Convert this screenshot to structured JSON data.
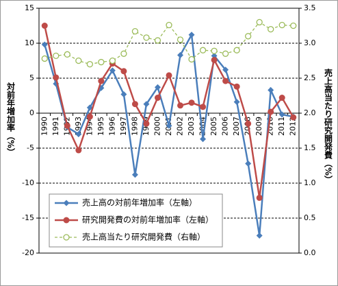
{
  "chart_data": {
    "type": "line",
    "ylabel": "対前年増加率（%）",
    "y2label": "売上高当たり研究開発費（%）",
    "categories": [
      "1990",
      "1991",
      "1992",
      "1993",
      "1994",
      "1995",
      "1996",
      "1997",
      "1998",
      "1999",
      "2000",
      "2001",
      "2002",
      "2003",
      "2004",
      "2005",
      "2006",
      "2007",
      "2008",
      "2009",
      "2010",
      "2011",
      "2012"
    ],
    "series": [
      {
        "name": "売上高の対前年増加率（左軸）",
        "color": "#4a7ebb",
        "marker": "diamond",
        "linestyle": "solid",
        "values": [
          9.8,
          4.2,
          -2.0,
          -3.0,
          0.8,
          3.6,
          6.1,
          2.7,
          -8.8,
          1.3,
          3.7,
          -1.8,
          8.3,
          11.2,
          -3.7,
          8.2,
          6.2,
          1.6,
          -7.2,
          -17.5,
          3.3,
          -0.2,
          -0.5
        ]
      },
      {
        "name": "研究開発費の対前年増加率（左軸）",
        "color": "#be4b48",
        "marker": "circle",
        "linestyle": "solid",
        "values": [
          12.5,
          5.1,
          -1.8,
          -5.3,
          -0.5,
          4.6,
          7.1,
          6.0,
          1.3,
          -1.5,
          2.2,
          5.4,
          1.1,
          1.5,
          0.9,
          7.6,
          4.6,
          3.8,
          -1.5,
          -12.1,
          0.2,
          2.2,
          -0.6
        ]
      },
      {
        "name": "売上高当たり研究開発費（右軸）",
        "color": "#9bbb59",
        "marker": "open-circle",
        "linestyle": "dashed",
        "axis": "y2",
        "values": [
          2.78,
          2.82,
          2.84,
          2.75,
          2.7,
          2.73,
          2.75,
          2.85,
          3.17,
          3.08,
          3.04,
          3.26,
          3.05,
          2.77,
          2.9,
          2.89,
          2.85,
          2.9,
          3.1,
          3.3,
          3.2,
          3.26,
          3.25
        ]
      }
    ],
    "ylim": [
      -20,
      15
    ],
    "yticks": [
      -20,
      -15,
      -10,
      -5,
      0,
      5,
      10,
      15
    ],
    "y2lim": [
      0,
      3.5
    ],
    "y2ticks": [
      {
        "value": 0,
        "label": "0.0"
      },
      0.5,
      {
        "value": 1,
        "label": "1.0"
      },
      1.5,
      {
        "value": 2,
        "label": "2.0"
      },
      2.5,
      {
        "value": 3,
        "label": "3.0"
      },
      3.5
    ],
    "grid": true,
    "legend": "lower left"
  }
}
